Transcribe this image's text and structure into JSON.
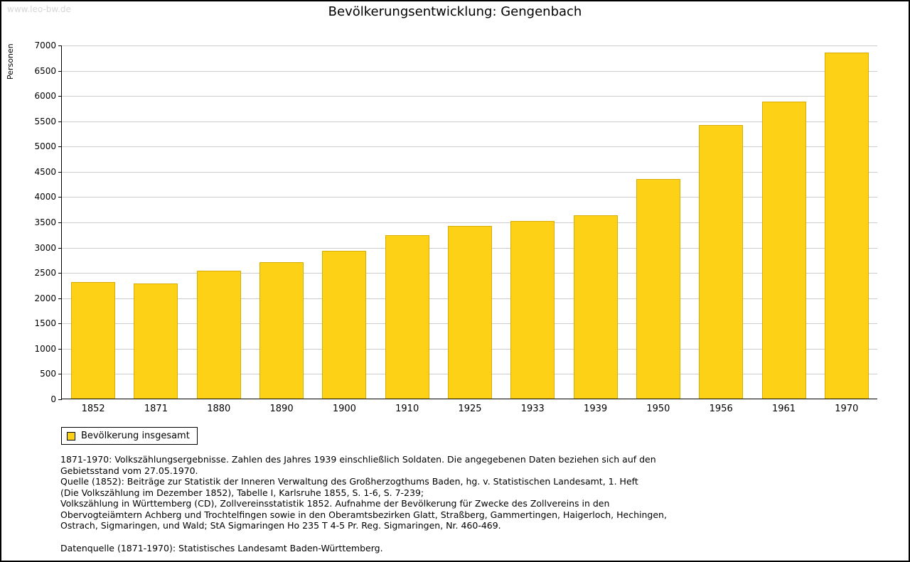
{
  "page": {
    "watermark": "www.leo-bw.de",
    "title": "Bevölkerungsentwicklung: Gengenbach"
  },
  "chart_data": {
    "type": "bar",
    "title": "Bevölkerungsentwicklung: Gengenbach",
    "xlabel": "",
    "ylabel": "Personen",
    "categories": [
      "1852",
      "1871",
      "1880",
      "1890",
      "1900",
      "1910",
      "1925",
      "1933",
      "1939",
      "1950",
      "1956",
      "1961",
      "1970"
    ],
    "values": [
      2310,
      2280,
      2530,
      2700,
      2930,
      3240,
      3420,
      3520,
      3620,
      4340,
      5410,
      5880,
      6850
    ],
    "ylim": [
      0,
      7000
    ],
    "ytick_step": 500,
    "grid": true,
    "bar_color": "#FCD116",
    "bar_border_color": "#D8AC00",
    "legend_entries": [
      "Bevölkerung insgesamt"
    ],
    "legend_position": "bottom-left"
  },
  "legend": {
    "label": "Bevölkerung insgesamt"
  },
  "notes": {
    "lines": [
      "1871-1970: Volkszählungsergebnisse. Zahlen des Jahres 1939 einschließlich Soldaten. Die angegebenen Daten beziehen sich auf den",
      "Gebietsstand vom 27.05.1970.",
      "Quelle (1852): Beiträge zur Statistik der Inneren Verwaltung des Großherzogthums Baden, hg. v. Statistischen Landesamt, 1. Heft",
      "(Die Volkszählung im Dezember 1852), Tabelle I, Karlsruhe 1855, S. 1-6, S. 7-239;",
      "Volkszählung in Württemberg (CD), Zollvereinsstatistik 1852. Aufnahme der Bevölkerung für Zwecke des Zollvereins in den",
      "Obervogteiämtern Achberg und Trochtelfingen sowie in den Oberamtsbezirken Glatt, Straßberg, Gammertingen, Haigerloch, Hechingen,",
      "Ostrach, Sigmaringen, und Wald; StA Sigmaringen Ho 235 T 4-5 Pr. Reg. Sigmaringen, Nr. 460-469."
    ],
    "datasource": "Datenquelle (1871-1970): Statistisches Landesamt Baden-Württemberg."
  }
}
